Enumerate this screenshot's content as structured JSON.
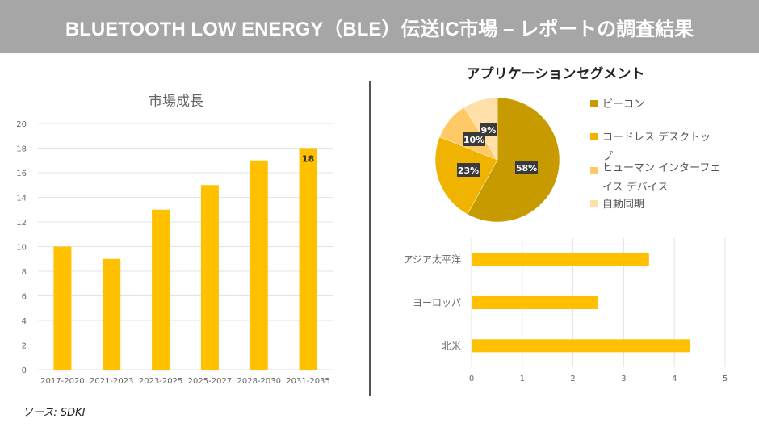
{
  "header": {
    "title": "BLUETOOTH LOW ENERGY（BLE）伝送IC市場 – レポートの調査結果"
  },
  "source": "ソース: SDKI",
  "chart_data": [
    {
      "type": "bar",
      "title": "市場成長",
      "categories": [
        "2017-2020",
        "2021-2023",
        "2023-2025",
        "2025-2027",
        "2028-2030",
        "2031-2035"
      ],
      "values": [
        10,
        9,
        13,
        15,
        17,
        18
      ],
      "ylim": [
        0,
        20
      ],
      "yticks": [
        0,
        2,
        4,
        6,
        8,
        10,
        12,
        14,
        16,
        18,
        20
      ],
      "data_labels": {
        "5": "18"
      },
      "grid": true,
      "color": "#FFC000"
    },
    {
      "type": "pie",
      "title": "アプリケーションセグメント",
      "labels": [
        "ビーコン",
        "コードレス デスクトップ",
        "ヒューマン インターフェイス デバイス",
        "自動同期"
      ],
      "values": [
        58,
        23,
        10,
        9
      ],
      "value_labels": [
        "58%",
        "23%",
        "10%",
        "9%"
      ],
      "colors": [
        "#C79A00",
        "#F0B400",
        "#FFC966",
        "#FFE0A8"
      ],
      "legend": "right"
    },
    {
      "type": "bar",
      "orientation": "horizontal",
      "categories": [
        "アジア太平洋",
        "ヨーロッパ",
        "北米"
      ],
      "values": [
        3.5,
        2.5,
        4.3
      ],
      "xlim": [
        0,
        5
      ],
      "xticks": [
        0,
        1,
        2,
        3,
        4,
        5
      ],
      "grid": true,
      "color": "#FFC000"
    }
  ]
}
